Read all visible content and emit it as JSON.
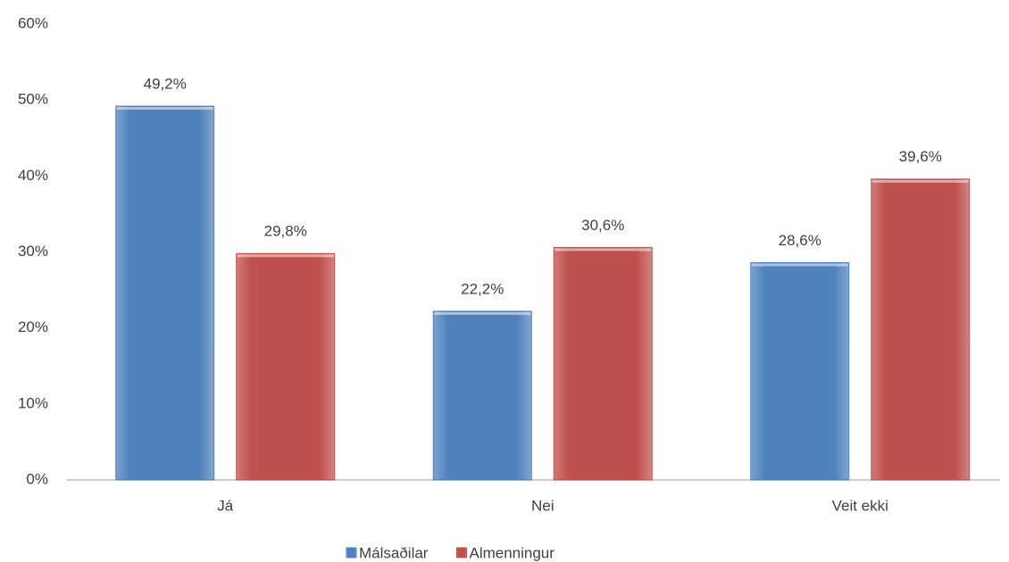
{
  "chart_data": {
    "type": "bar",
    "categories": [
      "Já",
      "Nei",
      "Veit ekki"
    ],
    "series": [
      {
        "name": "Málsaðilar",
        "color": "#4f81bd",
        "values": [
          49.2,
          22.2,
          28.6
        ],
        "value_labels": [
          "49,2%",
          "22,2%",
          "28,6%"
        ]
      },
      {
        "name": "Almenningur",
        "color": "#c0504d",
        "values": [
          29.8,
          30.6,
          39.6
        ],
        "value_labels": [
          "29,8%",
          "30,6%",
          "39,6%"
        ]
      }
    ],
    "ylim": [
      0,
      60
    ],
    "yticks": [
      {
        "value": 0,
        "label": "0%"
      },
      {
        "value": 10,
        "label": "10%"
      },
      {
        "value": 20,
        "label": "20%"
      },
      {
        "value": 30,
        "label": "30%"
      },
      {
        "value": 40,
        "label": "40%"
      },
      {
        "value": 50,
        "label": "50%"
      },
      {
        "value": 60,
        "label": "60%"
      }
    ],
    "grid": false,
    "legend": "bottom"
  }
}
